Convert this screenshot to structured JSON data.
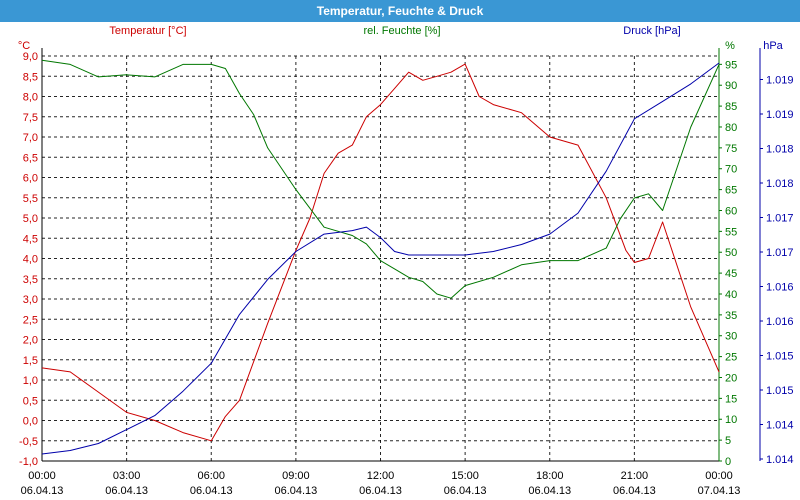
{
  "window": {
    "title": "Temperatur, Feuchte & Druck"
  },
  "colors": {
    "temperature": "#cc0000",
    "humidity": "#007700",
    "pressure": "#0000aa",
    "titlebar": "#3a97d4",
    "grid": "#000000"
  },
  "chart_data": {
    "type": "line",
    "title": "Temperatur, Feuchte & Druck",
    "grid": true,
    "grid_style": "dashed",
    "x": {
      "start": "06.04.13 00:00",
      "end": "07.04.13 00:00",
      "ticks": [
        {
          "time": "00:00",
          "date": "06.04.13"
        },
        {
          "time": "03:00",
          "date": "06.04.13"
        },
        {
          "time": "06:00",
          "date": "06.04.13"
        },
        {
          "time": "09:00",
          "date": "06.04.13"
        },
        {
          "time": "12:00",
          "date": "06.04.13"
        },
        {
          "time": "15:00",
          "date": "06.04.13"
        },
        {
          "time": "18:00",
          "date": "06.04.13"
        },
        {
          "time": "21:00",
          "date": "06.04.13"
        },
        {
          "time": "00:00",
          "date": "07.04.13"
        }
      ]
    },
    "axes": {
      "left": {
        "label": "Temperatur [°C]",
        "unit": "°C",
        "ylim": [
          -1.0,
          9.0
        ],
        "ticks": [
          "-1,0",
          "-0,5",
          "0,0",
          "0,5",
          "1,0",
          "1,5",
          "2,0",
          "2,5",
          "3,0",
          "3,5",
          "4,0",
          "4,5",
          "5,0",
          "5,5",
          "6,0",
          "6,5",
          "7,0",
          "7,5",
          "8,0",
          "8,5",
          "9,0"
        ]
      },
      "right1": {
        "label": "rel. Feuchte [%]",
        "unit": "%",
        "ylim": [
          0,
          97
        ],
        "ticks": [
          "0",
          "5",
          "10",
          "15",
          "20",
          "25",
          "30",
          "35",
          "40",
          "45",
          "50",
          "55",
          "60",
          "65",
          "70",
          "75",
          "80",
          "85",
          "90",
          "95"
        ]
      },
      "right2": {
        "label": "Druck [hPa]",
        "unit": "hPa",
        "ylim": [
          1013.75,
          1019.55
        ],
        "ticks": [
          "1.014",
          "1.014",
          "1.015",
          "1.015",
          "1.016",
          "1.016",
          "1.017",
          "1.017",
          "1.018",
          "1.018",
          "1.019",
          "1.019"
        ]
      }
    },
    "series": [
      {
        "name": "Temperatur [°C]",
        "axis": "left",
        "color": "#cc0000",
        "hours": [
          0,
          1,
          2,
          3,
          4,
          5,
          6,
          6.5,
          7,
          8,
          9,
          9.5,
          10,
          10.5,
          11,
          11.5,
          12,
          12.5,
          13,
          13.5,
          14,
          14.5,
          15,
          15.5,
          16,
          17,
          18,
          19,
          20,
          20.7,
          21,
          21.5,
          22,
          23,
          24
        ],
        "values": [
          1.3,
          1.2,
          0.7,
          0.2,
          0.0,
          -0.3,
          -0.5,
          0.1,
          0.5,
          2.4,
          4.2,
          5.0,
          6.1,
          6.6,
          6.8,
          7.5,
          7.8,
          8.2,
          8.6,
          8.4,
          8.5,
          8.6,
          8.8,
          8.0,
          7.8,
          7.6,
          7.0,
          6.8,
          5.5,
          4.2,
          3.9,
          4.0,
          4.9,
          2.8,
          1.2
        ]
      },
      {
        "name": "rel. Feuchte [%]",
        "axis": "right1",
        "color": "#007700",
        "hours": [
          0,
          1,
          2,
          3,
          4,
          5,
          6,
          6.5,
          7,
          7.5,
          8,
          9,
          10,
          11,
          11.5,
          12,
          12.5,
          13,
          13.5,
          14,
          14.5,
          15,
          16,
          17,
          18,
          19,
          20,
          20.5,
          21,
          21.5,
          22,
          23,
          24
        ],
        "values": [
          96,
          95,
          92,
          92.5,
          92,
          95,
          95,
          94,
          88,
          83,
          75,
          65,
          56,
          54,
          52,
          48,
          46,
          44,
          43,
          40,
          39,
          42,
          44,
          47,
          48,
          48,
          51,
          58,
          63,
          64,
          60,
          80,
          95
        ]
      },
      {
        "name": "Druck [hPa]",
        "axis": "right2",
        "color": "#0000aa",
        "hours": [
          0,
          1,
          2,
          3,
          4,
          5,
          6,
          7,
          8,
          9,
          10,
          11,
          11.5,
          12,
          12.5,
          13,
          14,
          15,
          16,
          17,
          18,
          19,
          20,
          21,
          22,
          23,
          24
        ],
        "values": [
          1013.85,
          1013.9,
          1014.0,
          1014.2,
          1014.4,
          1014.75,
          1015.15,
          1015.85,
          1016.35,
          1016.75,
          1017.0,
          1017.05,
          1017.1,
          1016.95,
          1016.75,
          1016.7,
          1016.7,
          1016.7,
          1016.75,
          1016.85,
          1017.0,
          1017.3,
          1017.9,
          1018.65,
          1018.9,
          1019.15,
          1019.45
        ]
      }
    ]
  }
}
